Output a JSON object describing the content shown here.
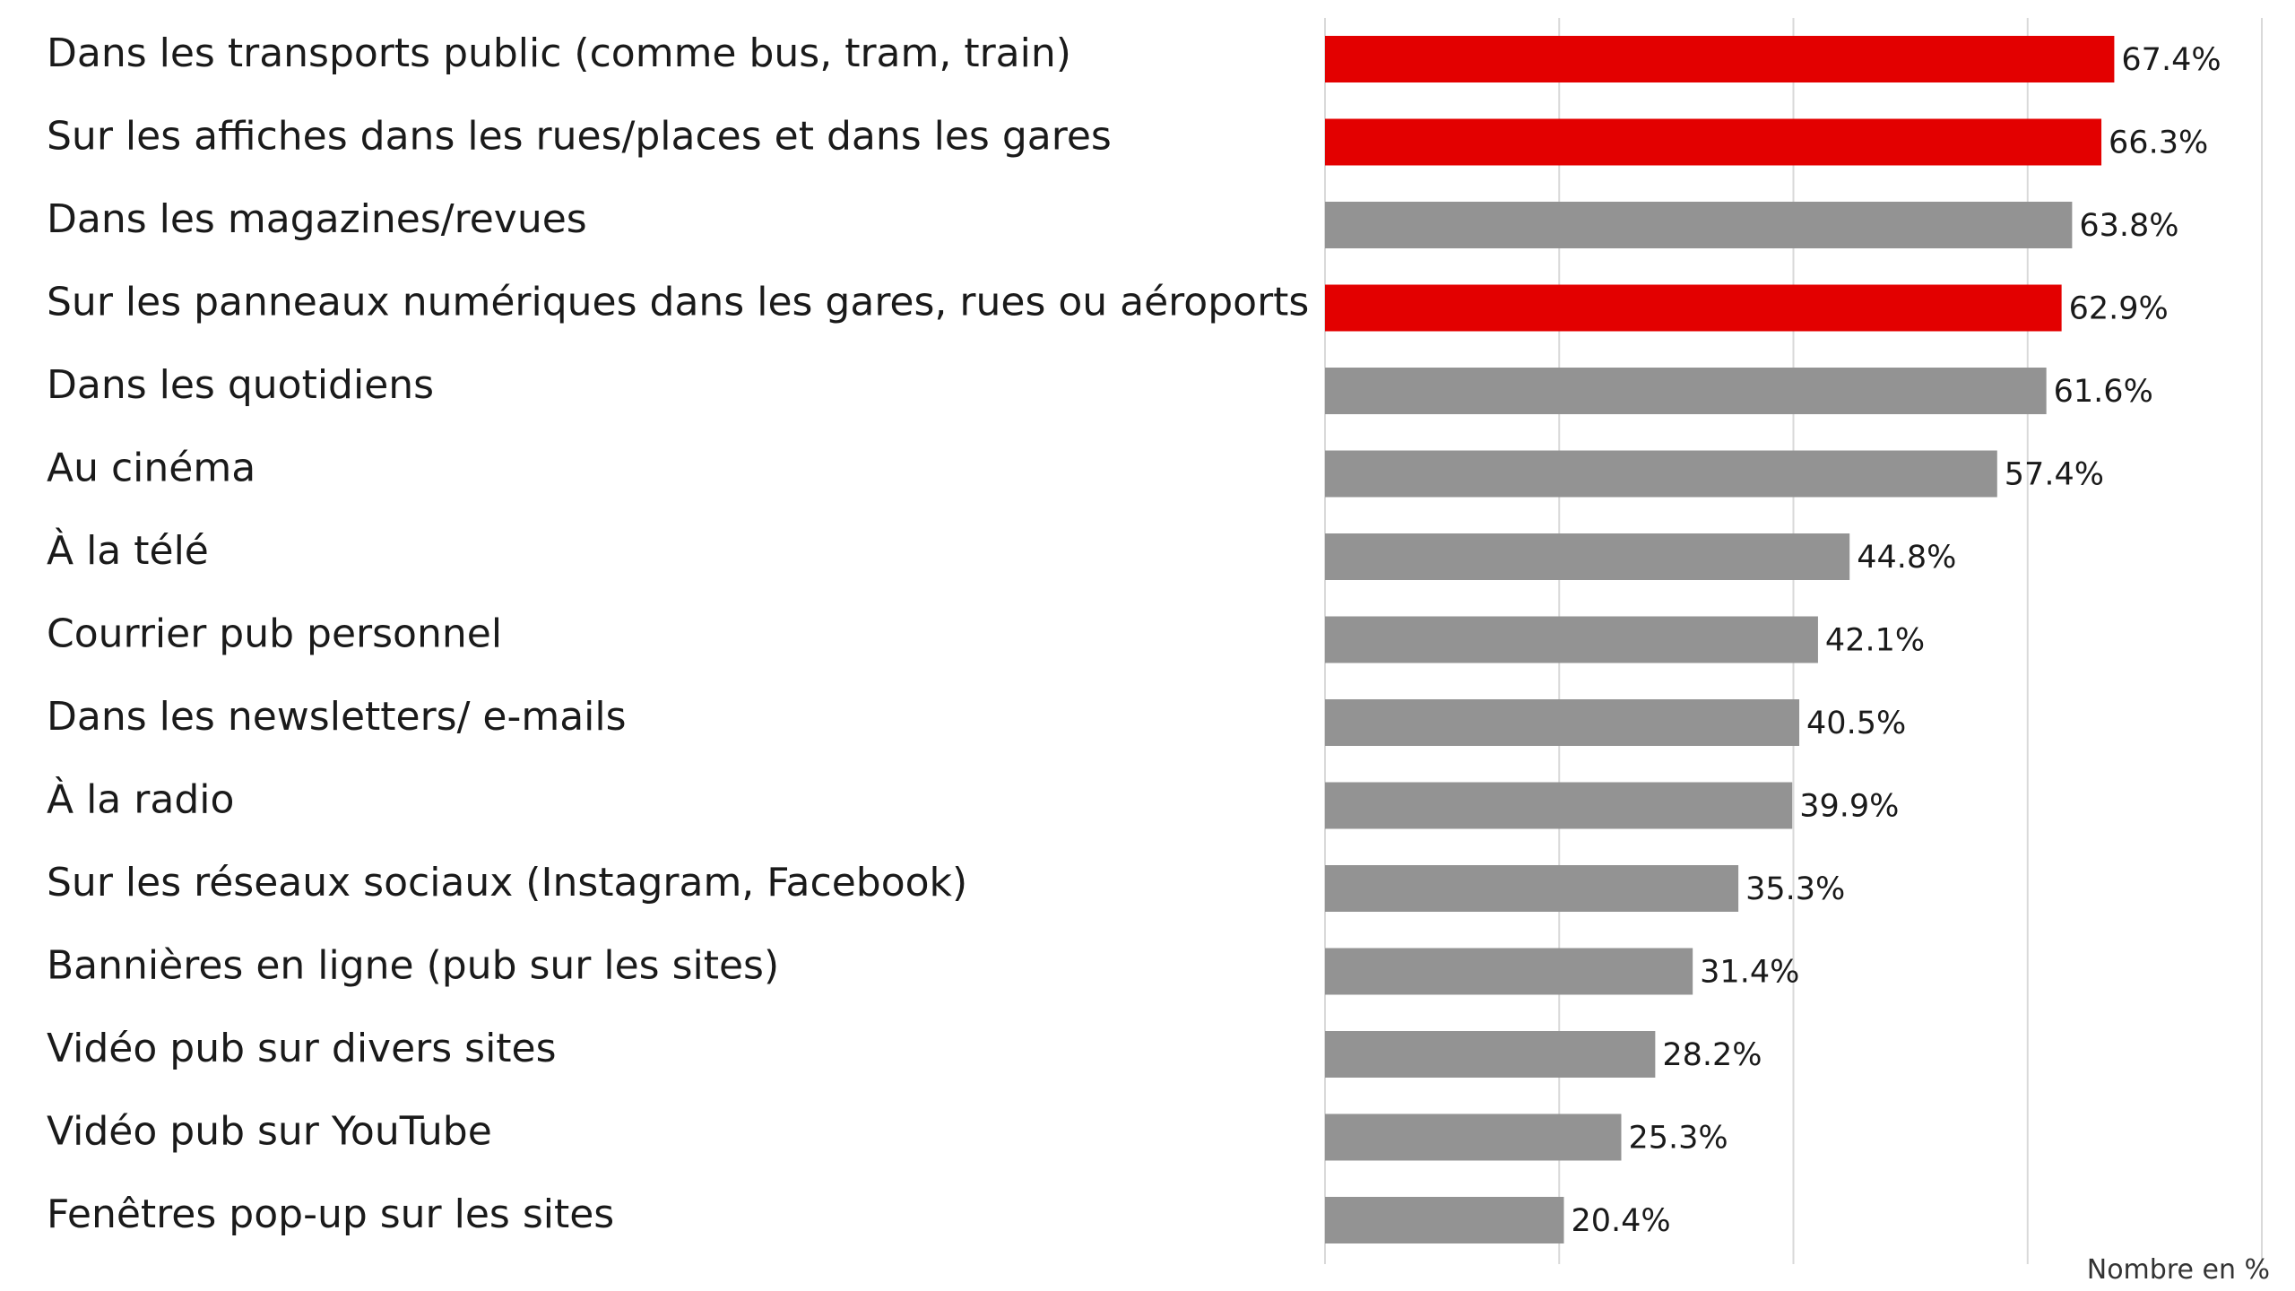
{
  "chart_data": {
    "type": "bar",
    "orientation": "horizontal",
    "categories": [
      "Dans les transports public (comme bus, tram, train)",
      "Sur les affiches dans les rues/places et dans les gares",
      "Dans les magazines/revues",
      "Sur les panneaux numériques dans les gares, rues ou aéroports",
      "Dans les quotidiens",
      "Au cinéma",
      "À la télé",
      "Courrier pub personnel",
      "Dans les newsletters/ e-mails",
      "À la radio",
      "Sur les réseaux sociaux (Instagram, Facebook)",
      "Bannières en ligne (pub sur les sites)",
      "Vidéo pub sur divers sites",
      "Vidéo pub sur YouTube",
      "Fenêtres pop-up sur les sites"
    ],
    "values": [
      67.4,
      66.3,
      63.8,
      62.9,
      61.6,
      57.4,
      44.8,
      42.1,
      40.5,
      39.9,
      35.3,
      31.4,
      28.2,
      25.3,
      20.4
    ],
    "value_labels": [
      "67.4%",
      "66.3%",
      "63.8%",
      "62.9%",
      "61.6%",
      "57.4%",
      "44.8%",
      "42.1%",
      "40.5%",
      "39.9%",
      "35.3%",
      "31.4%",
      "28.2%",
      "25.3%",
      "20.4%"
    ],
    "highlighted": [
      true,
      true,
      false,
      true,
      false,
      false,
      false,
      false,
      false,
      false,
      false,
      false,
      false,
      false,
      false
    ],
    "colors": {
      "highlight": "#e30000",
      "default": "#939393",
      "grid": "#d9d9d9"
    },
    "xlim": [
      0,
      80
    ],
    "gridlines_at": [
      0,
      20,
      40,
      60,
      80
    ],
    "grid": true,
    "unit_label": "Nombre en %",
    "title": "",
    "xlabel": "",
    "ylabel": ""
  }
}
